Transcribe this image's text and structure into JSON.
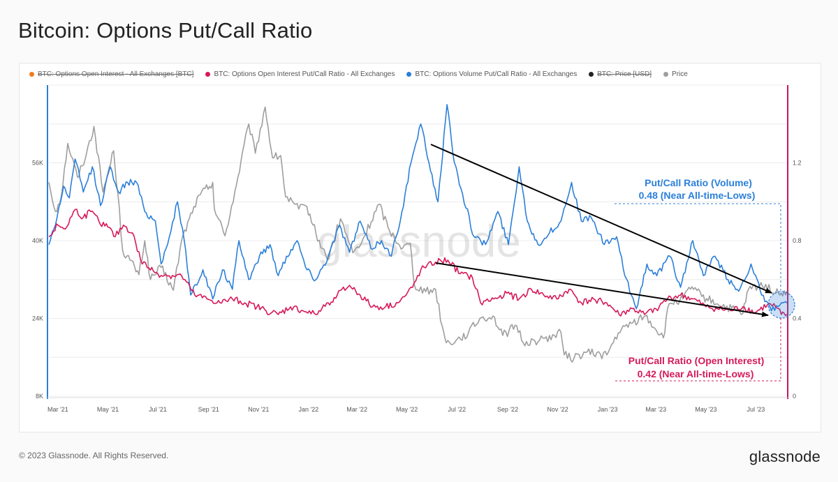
{
  "page": {
    "title": "Bitcoin: Options Put/Call Ratio",
    "copyright": "© 2023 Glassnode. All Rights Reserved.",
    "logo": "glassnode",
    "watermark": "glassnode"
  },
  "colors": {
    "volume": "#2b7fd9",
    "open_interest": "#d6185a",
    "price": "#9e9e9e",
    "oi_btc": "#f27a1a",
    "price_usd": "#222222",
    "left_axis": "#2b7fd9",
    "right_axis": "#c2185b"
  },
  "legend": [
    {
      "label": "BTC: Options Open Interest - All Exchanges [BTC]",
      "color": "#f27a1a",
      "disabled": true
    },
    {
      "label": "BTC: Options Open Interest Put/Call Ratio - All Exchanges",
      "color": "#d6185a",
      "disabled": false
    },
    {
      "label": "BTC: Options Volume Put/Call Ratio - All Exchanges",
      "color": "#2b7fd9",
      "disabled": false
    },
    {
      "label": "BTC: Price [USD]",
      "color": "#222222",
      "disabled": true
    },
    {
      "label": "Price",
      "color": "#9e9e9e",
      "disabled": false
    }
  ],
  "annotations": {
    "volume_title": "Put/Call Ratio (Volume)",
    "volume_value": "0.48 (Near All-time-Lows)",
    "oi_title": "Put/Call Ratio (Open Interest)",
    "oi_value": "0.42 (Near All-time-Lows)"
  },
  "chart_data": {
    "type": "line",
    "title": "Bitcoin: Options Put/Call Ratio",
    "x_ticks": [
      "Mar '21",
      "May '21",
      "Jul '21",
      "Sep '21",
      "Nov '21",
      "Jan '22",
      "Mar '22",
      "May '22",
      "Jul '22",
      "Sep '22",
      "Nov '22",
      "Jan '23",
      "Mar '23",
      "May '23",
      "Jul '23"
    ],
    "x_range": [
      "2021-02-18",
      "2023-08-08"
    ],
    "y_left": {
      "ticks": [
        "8K",
        "24K",
        "40K",
        "56K"
      ],
      "values": [
        8000,
        24000,
        40000,
        56000
      ],
      "range": [
        8000,
        72000
      ]
    },
    "y_right": {
      "ticks": [
        "0",
        "0.4",
        "0.8",
        "1.2"
      ],
      "values": [
        0,
        0.4,
        0.8,
        1.2
      ],
      "range": [
        0,
        1.6
      ]
    },
    "grid": true,
    "legend_position": "top",
    "series": [
      {
        "name": "Price",
        "axis": "left",
        "color": "#9e9e9e",
        "points": [
          [
            "2021-02-18",
            52000
          ],
          [
            "2021-02-26",
            46000
          ],
          [
            "2021-03-05",
            49000
          ],
          [
            "2021-03-13",
            60000
          ],
          [
            "2021-03-25",
            53000
          ],
          [
            "2021-04-05",
            58000
          ],
          [
            "2021-04-14",
            63500
          ],
          [
            "2021-04-25",
            50000
          ],
          [
            "2021-05-08",
            58500
          ],
          [
            "2021-05-13",
            50000
          ],
          [
            "2021-05-19",
            38000
          ],
          [
            "2021-05-28",
            36000
          ],
          [
            "2021-06-08",
            33000
          ],
          [
            "2021-06-15",
            40000
          ],
          [
            "2021-06-22",
            32000
          ],
          [
            "2021-07-05",
            34500
          ],
          [
            "2021-07-20",
            29800
          ],
          [
            "2021-07-30",
            40000
          ],
          [
            "2021-08-14",
            47000
          ],
          [
            "2021-08-22",
            49500
          ],
          [
            "2021-09-06",
            52000
          ],
          [
            "2021-09-08",
            46500
          ],
          [
            "2021-09-21",
            41000
          ],
          [
            "2021-10-05",
            51500
          ],
          [
            "2021-10-20",
            64000
          ],
          [
            "2021-10-28",
            58000
          ],
          [
            "2021-11-09",
            67500
          ],
          [
            "2021-11-18",
            57000
          ],
          [
            "2021-11-28",
            57500
          ],
          [
            "2021-12-04",
            49000
          ],
          [
            "2021-12-20",
            46500
          ],
          [
            "2021-12-30",
            47000
          ],
          [
            "2022-01-10",
            41500
          ],
          [
            "2022-01-24",
            36000
          ],
          [
            "2022-02-09",
            44500
          ],
          [
            "2022-02-24",
            37500
          ],
          [
            "2022-03-05",
            39000
          ],
          [
            "2022-03-28",
            47500
          ],
          [
            "2022-04-10",
            42000
          ],
          [
            "2022-04-26",
            38500
          ],
          [
            "2022-05-05",
            39500
          ],
          [
            "2022-05-10",
            31000
          ],
          [
            "2022-05-24",
            29500
          ],
          [
            "2022-06-05",
            30000
          ],
          [
            "2022-06-13",
            22500
          ],
          [
            "2022-06-18",
            19000
          ],
          [
            "2022-06-30",
            19500
          ],
          [
            "2022-07-15",
            21000
          ],
          [
            "2022-07-29",
            24000
          ],
          [
            "2022-08-14",
            24500
          ],
          [
            "2022-08-26",
            20500
          ],
          [
            "2022-09-12",
            22500
          ],
          [
            "2022-09-20",
            19000
          ],
          [
            "2022-10-10",
            19500
          ],
          [
            "2022-10-28",
            20500
          ],
          [
            "2022-11-05",
            21200
          ],
          [
            "2022-11-09",
            16500
          ],
          [
            "2022-11-21",
            15800
          ],
          [
            "2022-12-05",
            17000
          ],
          [
            "2022-12-31",
            16500
          ],
          [
            "2023-01-14",
            21000
          ],
          [
            "2023-01-30",
            23000
          ],
          [
            "2023-02-16",
            24500
          ],
          [
            "2023-03-10",
            20000
          ],
          [
            "2023-03-17",
            27000
          ],
          [
            "2023-04-03",
            28000
          ],
          [
            "2023-04-14",
            30500
          ],
          [
            "2023-04-26",
            28500
          ],
          [
            "2023-05-15",
            27000
          ],
          [
            "2023-06-15",
            25000
          ],
          [
            "2023-06-22",
            30000
          ],
          [
            "2023-07-13",
            31000
          ],
          [
            "2023-07-25",
            29200
          ],
          [
            "2023-08-01",
            29200
          ],
          [
            "2023-08-08",
            29700
          ]
        ]
      },
      {
        "name": "BTC: Options Volume Put/Call Ratio - All Exchanges",
        "axis": "right",
        "color": "#2b7fd9",
        "points": [
          [
            "2021-02-18",
            0.78
          ],
          [
            "2021-02-28",
            0.92
          ],
          [
            "2021-03-08",
            1.08
          ],
          [
            "2021-03-15",
            1.02
          ],
          [
            "2021-03-22",
            1.22
          ],
          [
            "2021-04-01",
            1.05
          ],
          [
            "2021-04-12",
            1.18
          ],
          [
            "2021-04-22",
            0.98
          ],
          [
            "2021-05-04",
            1.18
          ],
          [
            "2021-05-14",
            1.05
          ],
          [
            "2021-05-25",
            1.1
          ],
          [
            "2021-06-05",
            1.1
          ],
          [
            "2021-06-15",
            0.95
          ],
          [
            "2021-06-28",
            0.9
          ],
          [
            "2021-07-05",
            0.68
          ],
          [
            "2021-07-15",
            0.82
          ],
          [
            "2021-07-25",
            1.0
          ],
          [
            "2021-08-04",
            0.75
          ],
          [
            "2021-08-10",
            0.52
          ],
          [
            "2021-08-25",
            0.65
          ],
          [
            "2021-09-06",
            0.5
          ],
          [
            "2021-09-18",
            0.65
          ],
          [
            "2021-09-30",
            0.55
          ],
          [
            "2021-10-08",
            0.8
          ],
          [
            "2021-10-20",
            0.6
          ],
          [
            "2021-11-02",
            0.72
          ],
          [
            "2021-11-15",
            0.78
          ],
          [
            "2021-11-25",
            0.62
          ],
          [
            "2021-12-05",
            0.72
          ],
          [
            "2021-12-18",
            0.8
          ],
          [
            "2021-12-30",
            0.65
          ],
          [
            "2022-01-10",
            0.6
          ],
          [
            "2022-01-25",
            0.72
          ],
          [
            "2022-02-08",
            0.88
          ],
          [
            "2022-02-20",
            0.74
          ],
          [
            "2022-03-05",
            0.9
          ],
          [
            "2022-03-18",
            0.76
          ],
          [
            "2022-03-31",
            0.8
          ],
          [
            "2022-04-12",
            0.72
          ],
          [
            "2022-04-25",
            0.95
          ],
          [
            "2022-05-06",
            1.2
          ],
          [
            "2022-05-18",
            1.4
          ],
          [
            "2022-05-28",
            1.2
          ],
          [
            "2022-06-08",
            1.0
          ],
          [
            "2022-06-19",
            1.5
          ],
          [
            "2022-06-28",
            1.2
          ],
          [
            "2022-07-08",
            1.04
          ],
          [
            "2022-07-22",
            0.82
          ],
          [
            "2022-08-05",
            0.78
          ],
          [
            "2022-08-20",
            0.95
          ],
          [
            "2022-09-02",
            0.78
          ],
          [
            "2022-09-15",
            1.18
          ],
          [
            "2022-09-25",
            0.9
          ],
          [
            "2022-10-08",
            0.78
          ],
          [
            "2022-10-22",
            0.84
          ],
          [
            "2022-11-05",
            0.9
          ],
          [
            "2022-11-18",
            1.1
          ],
          [
            "2022-11-30",
            0.9
          ],
          [
            "2022-12-12",
            0.92
          ],
          [
            "2022-12-28",
            0.78
          ],
          [
            "2023-01-12",
            0.82
          ],
          [
            "2023-01-22",
            0.62
          ],
          [
            "2023-02-05",
            0.45
          ],
          [
            "2023-02-18",
            0.68
          ],
          [
            "2023-03-02",
            0.62
          ],
          [
            "2023-03-18",
            0.72
          ],
          [
            "2023-03-31",
            0.56
          ],
          [
            "2023-04-15",
            0.8
          ],
          [
            "2023-04-28",
            0.62
          ],
          [
            "2023-05-12",
            0.72
          ],
          [
            "2023-05-28",
            0.6
          ],
          [
            "2023-06-10",
            0.54
          ],
          [
            "2023-06-25",
            0.68
          ],
          [
            "2023-07-08",
            0.52
          ],
          [
            "2023-07-20",
            0.44
          ],
          [
            "2023-08-01",
            0.48
          ],
          [
            "2023-08-08",
            0.48
          ]
        ]
      },
      {
        "name": "BTC: Options Open Interest Put/Call Ratio - All Exchanges",
        "axis": "right",
        "color": "#d6185a",
        "points": [
          [
            "2021-02-18",
            0.82
          ],
          [
            "2021-03-01",
            0.88
          ],
          [
            "2021-03-10",
            0.86
          ],
          [
            "2021-03-22",
            0.96
          ],
          [
            "2021-04-01",
            0.92
          ],
          [
            "2021-04-10",
            0.95
          ],
          [
            "2021-04-20",
            0.9
          ],
          [
            "2021-05-01",
            0.87
          ],
          [
            "2021-05-10",
            0.82
          ],
          [
            "2021-05-20",
            0.88
          ],
          [
            "2021-05-31",
            0.84
          ],
          [
            "2021-06-10",
            0.7
          ],
          [
            "2021-06-20",
            0.66
          ],
          [
            "2021-07-01",
            0.63
          ],
          [
            "2021-07-15",
            0.62
          ],
          [
            "2021-07-30",
            0.62
          ],
          [
            "2021-08-15",
            0.52
          ],
          [
            "2021-08-30",
            0.5
          ],
          [
            "2021-09-15",
            0.48
          ],
          [
            "2021-09-30",
            0.5
          ],
          [
            "2021-10-15",
            0.48
          ],
          [
            "2021-10-30",
            0.46
          ],
          [
            "2021-11-10",
            0.44
          ],
          [
            "2021-11-25",
            0.42
          ],
          [
            "2021-12-10",
            0.46
          ],
          [
            "2021-12-25",
            0.44
          ],
          [
            "2022-01-10",
            0.42
          ],
          [
            "2022-01-25",
            0.48
          ],
          [
            "2022-02-05",
            0.52
          ],
          [
            "2022-02-20",
            0.57
          ],
          [
            "2022-03-05",
            0.52
          ],
          [
            "2022-03-20",
            0.46
          ],
          [
            "2022-04-05",
            0.46
          ],
          [
            "2022-04-20",
            0.48
          ],
          [
            "2022-04-30",
            0.52
          ],
          [
            "2022-05-08",
            0.56
          ],
          [
            "2022-05-18",
            0.65
          ],
          [
            "2022-06-05",
            0.69
          ],
          [
            "2022-06-20",
            0.7
          ],
          [
            "2022-07-05",
            0.63
          ],
          [
            "2022-07-20",
            0.61
          ],
          [
            "2022-07-30",
            0.48
          ],
          [
            "2022-08-15",
            0.5
          ],
          [
            "2022-08-31",
            0.53
          ],
          [
            "2022-09-15",
            0.5
          ],
          [
            "2022-09-30",
            0.55
          ],
          [
            "2022-10-15",
            0.52
          ],
          [
            "2022-10-31",
            0.5
          ],
          [
            "2022-11-15",
            0.55
          ],
          [
            "2022-11-30",
            0.48
          ],
          [
            "2022-12-15",
            0.5
          ],
          [
            "2022-12-31",
            0.48
          ],
          [
            "2023-01-15",
            0.42
          ],
          [
            "2023-01-31",
            0.45
          ],
          [
            "2023-02-15",
            0.42
          ],
          [
            "2023-03-01",
            0.45
          ],
          [
            "2023-03-15",
            0.5
          ],
          [
            "2023-03-31",
            0.52
          ],
          [
            "2023-04-15",
            0.5
          ],
          [
            "2023-05-01",
            0.46
          ],
          [
            "2023-05-15",
            0.45
          ],
          [
            "2023-05-31",
            0.44
          ],
          [
            "2023-06-15",
            0.46
          ],
          [
            "2023-06-30",
            0.43
          ],
          [
            "2023-07-15",
            0.47
          ],
          [
            "2023-07-25",
            0.46
          ],
          [
            "2023-08-01",
            0.42
          ],
          [
            "2023-08-08",
            0.42
          ]
        ]
      }
    ]
  }
}
